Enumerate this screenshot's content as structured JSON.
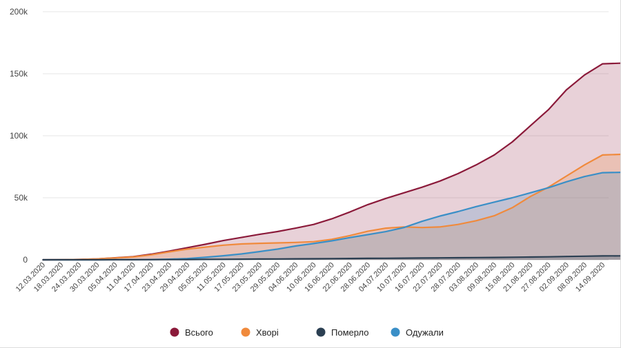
{
  "chart_data": {
    "type": "area",
    "ylim": [
      0,
      200000
    ],
    "y_ticks": [
      {
        "value": 0,
        "label": "0"
      },
      {
        "value": 50000,
        "label": "50k"
      },
      {
        "value": 100000,
        "label": "100k"
      },
      {
        "value": 150000,
        "label": "150k"
      },
      {
        "value": 200000,
        "label": "200k"
      }
    ],
    "x_tick_labels": [
      "12.03.2020",
      "18.03.2020",
      "24.03.2020",
      "30.03.2020",
      "05.04.2020",
      "11.04.2020",
      "17.04.2020",
      "23.04.2020",
      "29.04.2020",
      "05.05.2020",
      "11.05.2020",
      "17.05.2020",
      "23.05.2020",
      "29.05.2020",
      "04.06.2020",
      "10.06.2020",
      "16.06.2020",
      "22.06.2020",
      "28.06.2020",
      "04.07.2020",
      "10.07.2020",
      "16.07.2020",
      "22.07.2020",
      "28.07.2020",
      "03.08.2020",
      "09.08.2020",
      "15.08.2020",
      "21.08.2020",
      "27.08.2020",
      "02.09.2020",
      "08.09.2020",
      "14.09.2020"
    ],
    "x": [
      "12.03.2020",
      "18.03.2020",
      "24.03.2020",
      "30.03.2020",
      "05.04.2020",
      "11.04.2020",
      "17.04.2020",
      "23.04.2020",
      "29.04.2020",
      "05.05.2020",
      "11.05.2020",
      "17.05.2020",
      "23.05.2020",
      "29.05.2020",
      "04.06.2020",
      "10.06.2020",
      "16.06.2020",
      "22.06.2020",
      "28.06.2020",
      "04.07.2020",
      "10.07.2020",
      "16.07.2020",
      "22.07.2020",
      "28.07.2020",
      "03.08.2020",
      "09.08.2020",
      "15.08.2020",
      "21.08.2020",
      "27.08.2020",
      "02.09.2020",
      "08.09.2020",
      "14.09.2020",
      "16.09.2020"
    ],
    "series": [
      {
        "name": "Всього",
        "color": "#8b1a3a",
        "values": [
          10,
          50,
          300,
          700,
          1600,
          2500,
          4500,
          7000,
          9800,
          12500,
          15500,
          18000,
          20500,
          22800,
          25500,
          28500,
          33000,
          38500,
          44500,
          49500,
          54000,
          58500,
          63500,
          69500,
          76500,
          84500,
          95000,
          108000,
          121000,
          137000,
          149000,
          158000,
          158500
        ]
      },
      {
        "name": "Хворі",
        "color": "#f08a3c",
        "values": [
          10,
          40,
          300,
          700,
          1500,
          2300,
          4000,
          6400,
          8600,
          10200,
          11800,
          12800,
          13300,
          13600,
          14000,
          14600,
          16500,
          19500,
          23000,
          25500,
          26500,
          26000,
          26500,
          28500,
          31500,
          35500,
          42000,
          51000,
          58500,
          67500,
          76500,
          84500,
          85000
        ]
      },
      {
        "name": "Померло",
        "color": "#2b3f52",
        "values": [
          0,
          0,
          5,
          20,
          50,
          80,
          130,
          190,
          250,
          320,
          400,
          500,
          600,
          680,
          750,
          850,
          950,
          1060,
          1170,
          1250,
          1350,
          1450,
          1550,
          1680,
          1780,
          1900,
          2050,
          2220,
          2400,
          2650,
          2900,
          3100,
          3150
        ]
      },
      {
        "name": "Одужали",
        "color": "#3a8fc7",
        "values": [
          0,
          0,
          0,
          0,
          50,
          100,
          250,
          500,
          1000,
          2000,
          3300,
          4700,
          6600,
          8600,
          11100,
          13100,
          15300,
          17900,
          20300,
          22700,
          26000,
          31000,
          35300,
          38900,
          42900,
          46500,
          50000,
          54000,
          58100,
          62900,
          67100,
          70200,
          70500
        ]
      }
    ],
    "legend_position": "bottom",
    "grid": true
  }
}
